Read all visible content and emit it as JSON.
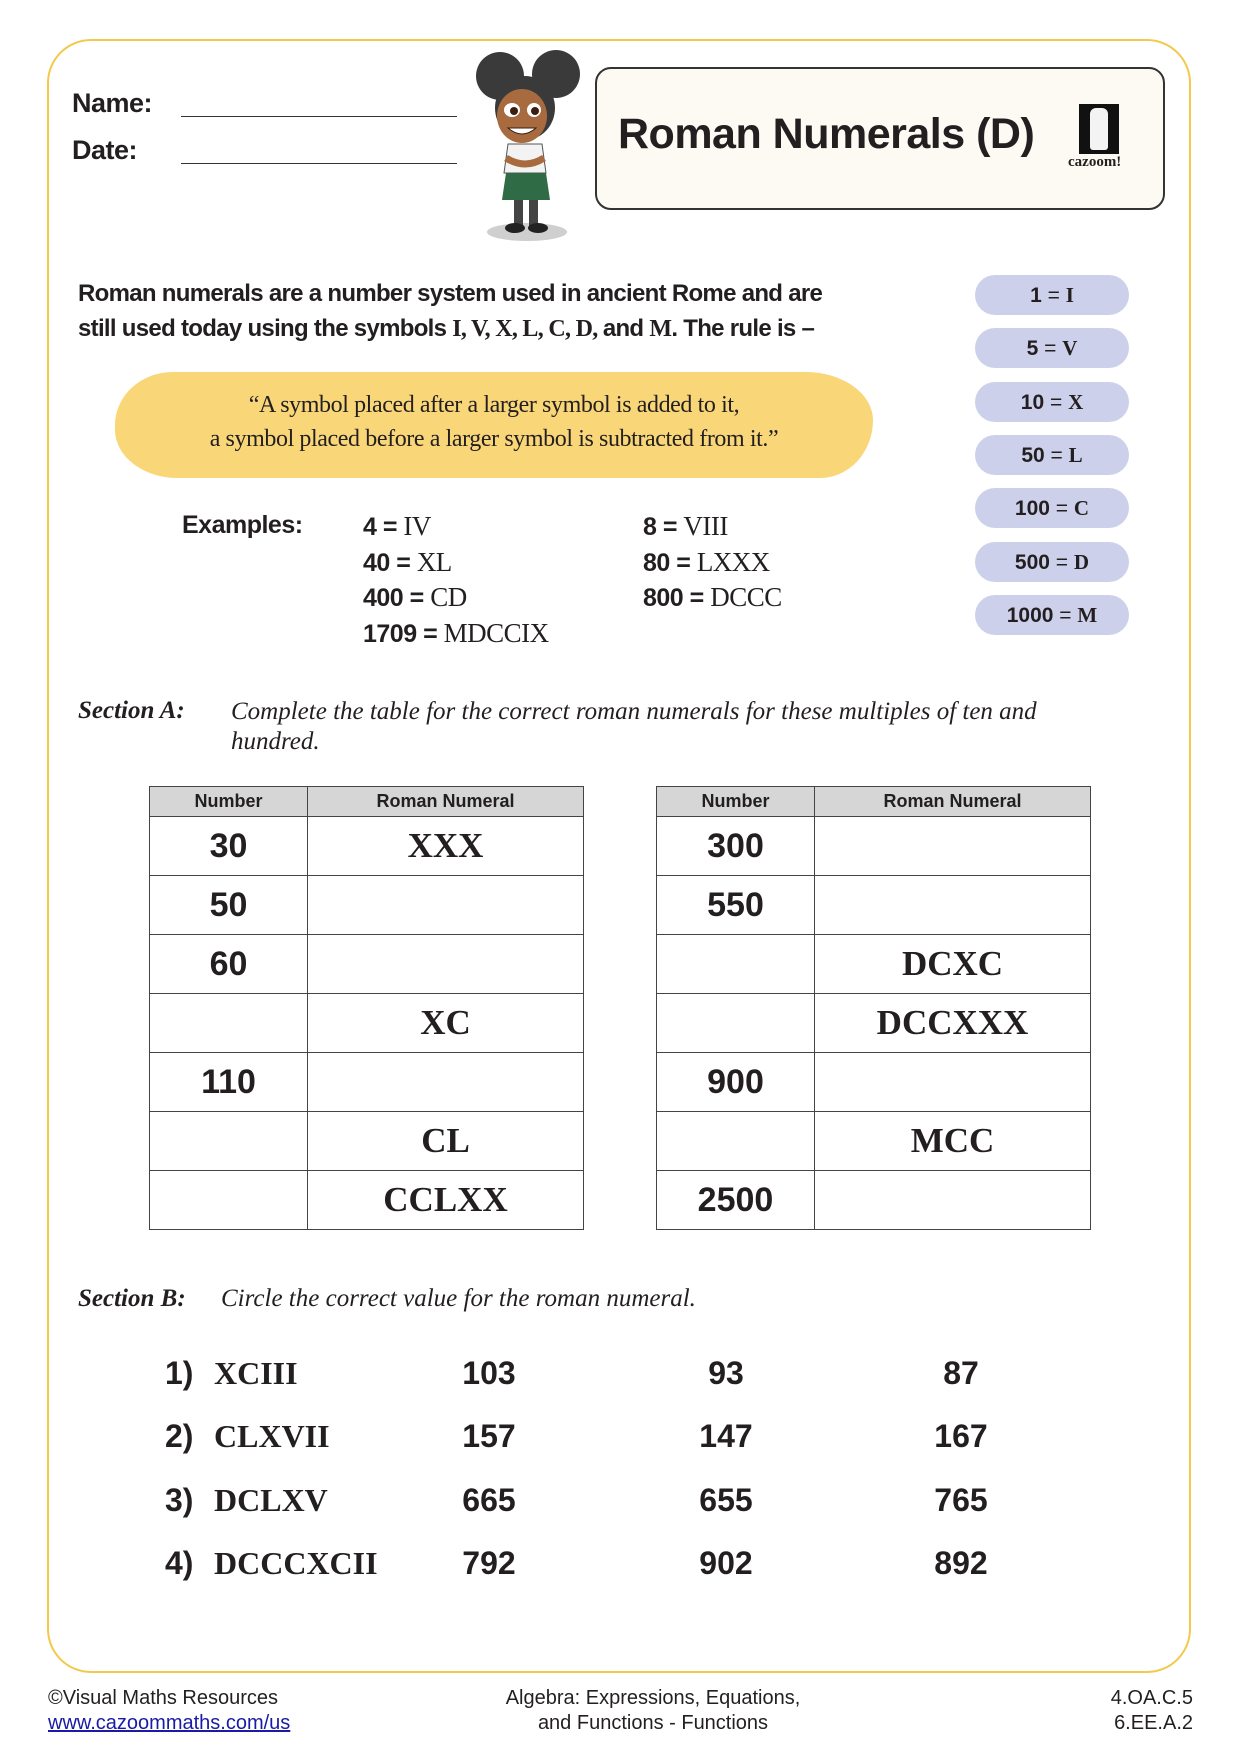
{
  "header": {
    "name_label": "Name:",
    "date_label": "Date:",
    "title": "Roman Numerals (D)",
    "logo_text": "cazoom!"
  },
  "intro": {
    "line1": "Roman numerals are a number system used in ancient Rome and are",
    "line2_start": "still used today using the symbols ",
    "line2_symbols": "I, V, X, L, C, D, ",
    "line2_and": "and ",
    "line2_m": "M",
    "line2_end": ". The rule is –"
  },
  "rule": {
    "line1": "“A symbol placed after a larger symbol is added to it,",
    "line2": "a symbol placed before a larger symbol is subtracted from it.”"
  },
  "key": [
    {
      "value": "1",
      "numeral": "I"
    },
    {
      "value": "5",
      "numeral": "V"
    },
    {
      "value": "10",
      "numeral": "X"
    },
    {
      "value": "50",
      "numeral": "L"
    },
    {
      "value": "100",
      "numeral": "C"
    },
    {
      "value": "500",
      "numeral": "D"
    },
    {
      "value": "1000",
      "numeral": "M"
    }
  ],
  "examples": {
    "label": "Examples:",
    "items": [
      {
        "value": "4",
        "numeral": "IV"
      },
      {
        "value": "40",
        "numeral": "XL"
      },
      {
        "value": "400",
        "numeral": "CD"
      },
      {
        "value": "1709",
        "numeral": "MDCCIX"
      },
      {
        "value": "8",
        "numeral": "VIII"
      },
      {
        "value": "80",
        "numeral": "LXXX"
      },
      {
        "value": "800",
        "numeral": "DCCC"
      }
    ]
  },
  "section_a": {
    "label": "Section A:",
    "instruction_line1": "Complete the table for the correct roman numerals for these multiples of ten and",
    "instruction_line2": "hundred.",
    "headers": [
      "Number",
      "Roman Numeral"
    ],
    "left_table": [
      [
        "30",
        "XXX"
      ],
      [
        "50",
        ""
      ],
      [
        "60",
        ""
      ],
      [
        "",
        "XC"
      ],
      [
        "110",
        ""
      ],
      [
        "",
        "CL"
      ],
      [
        "",
        "CCLXX"
      ]
    ],
    "right_table": [
      [
        "300",
        ""
      ],
      [
        "550",
        ""
      ],
      [
        "",
        "DCXC"
      ],
      [
        "",
        "DCCXXX"
      ],
      [
        "900",
        ""
      ],
      [
        "",
        "MCC"
      ],
      [
        "2500",
        ""
      ]
    ]
  },
  "section_b": {
    "label": "Section B:",
    "instruction": "Circle the correct value for the roman numeral.",
    "questions": [
      {
        "n": "1)",
        "numeral": "XCIII",
        "options": [
          "103",
          "93",
          "87"
        ]
      },
      {
        "n": "2)",
        "numeral": "CLXVII",
        "options": [
          "157",
          "147",
          "167"
        ]
      },
      {
        "n": "3)",
        "numeral": "DCLXV",
        "options": [
          "665",
          "655",
          "765"
        ]
      },
      {
        "n": "4)",
        "numeral": "DCCCXCII",
        "options": [
          "792",
          "902",
          "892"
        ]
      }
    ]
  },
  "footer": {
    "copyright": "©Visual Maths Resources",
    "url": "www.cazoommaths.com/us",
    "topic_line1": "Algebra: Expressions, Equations,",
    "topic_line2": "and Functions - Functions",
    "standard1": "4.OA.C.5",
    "standard2": "6.EE.A.2"
  },
  "colors": {
    "frame": "#f2c94c",
    "rule_highlight": "#f9d778",
    "key_pill": "#cdd0ea",
    "table_header": "#d6d6d6",
    "link": "#1a1aa6"
  }
}
